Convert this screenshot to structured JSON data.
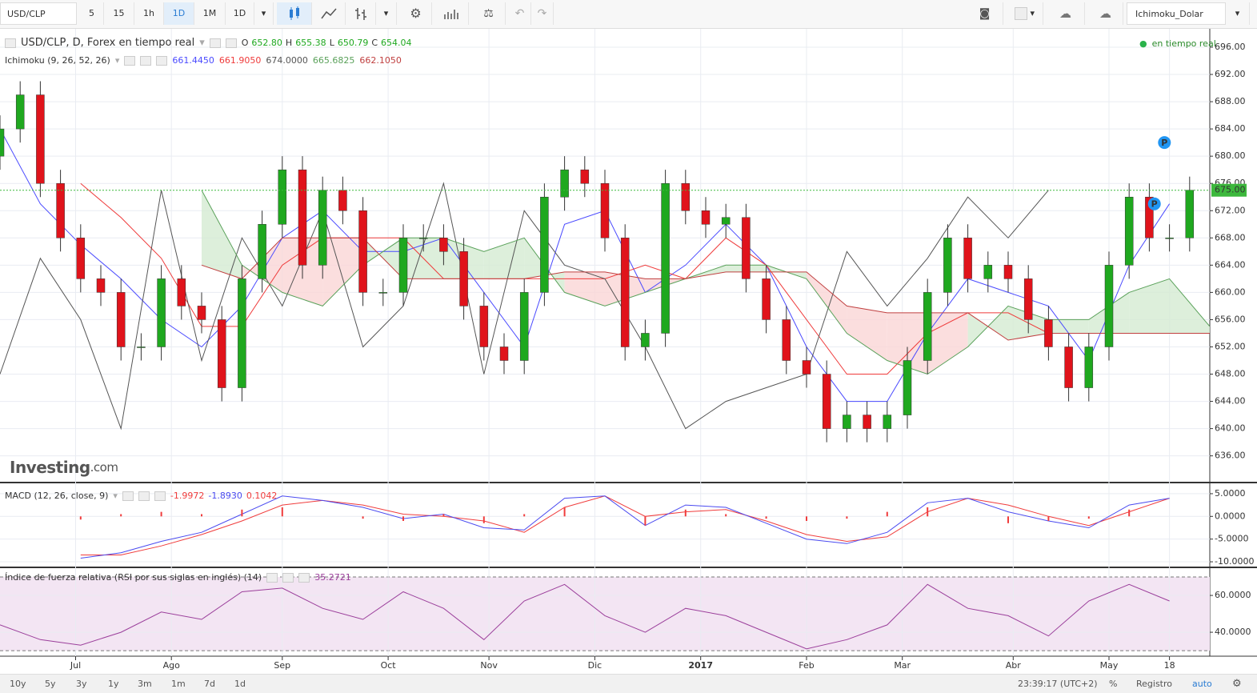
{
  "toolbar": {
    "symbol": "USD/CLP",
    "intervals": [
      "5",
      "15",
      "1h",
      "1D",
      "1M"
    ],
    "chart_type": "1D",
    "template": "Ichimoku_Dolar"
  },
  "chart_data": [
    {
      "type": "candlestick",
      "title": "USD/CLP, D, Forex en tiempo real",
      "status": "en tiempo real",
      "readout": [
        {
          "name": "O",
          "value": "652.80"
        },
        {
          "name": "H",
          "value": "655.38"
        },
        {
          "name": "L",
          "value": "650.79"
        },
        {
          "name": "C",
          "value": "654.04"
        }
      ],
      "watermark": [
        "Investing",
        ".com"
      ],
      "x": [
        0,
        4,
        8,
        12,
        16,
        20,
        24,
        28,
        32,
        36,
        40,
        44,
        48,
        52,
        56,
        60,
        64,
        68,
        72,
        76,
        80,
        84,
        88,
        92,
        96,
        100,
        104,
        108,
        112,
        116,
        120,
        124,
        128,
        132,
        136,
        140,
        144,
        148,
        152,
        156,
        160,
        164,
        168,
        172,
        176,
        180,
        184,
        188,
        192,
        196,
        200,
        204,
        208,
        212,
        216,
        220,
        224,
        228,
        232,
        236
      ],
      "open": [
        680,
        684,
        689,
        676,
        668,
        662,
        660,
        652,
        652,
        662,
        658,
        656,
        646,
        662,
        670,
        678,
        664,
        675,
        672,
        660,
        660,
        668,
        668,
        666,
        658,
        652,
        650,
        660,
        674,
        678,
        676,
        668,
        652,
        654,
        676,
        672,
        670,
        671,
        662,
        656,
        650,
        648,
        640,
        642,
        640,
        642,
        650,
        660,
        668,
        662,
        664,
        662,
        656,
        652,
        646,
        652,
        664,
        674,
        668,
        668
      ],
      "high": [
        686,
        691,
        691,
        678,
        670,
        664,
        662,
        654,
        664,
        664,
        660,
        658,
        664,
        672,
        680,
        680,
        677,
        677,
        674,
        662,
        670,
        670,
        670,
        668,
        660,
        654,
        662,
        676,
        680,
        680,
        678,
        670,
        656,
        678,
        678,
        674,
        673,
        673,
        664,
        658,
        652,
        650,
        644,
        644,
        644,
        652,
        662,
        670,
        670,
        666,
        666,
        664,
        658,
        654,
        654,
        666,
        676,
        676,
        670,
        677
      ],
      "low": [
        678,
        682,
        674,
        666,
        660,
        658,
        650,
        650,
        650,
        656,
        654,
        644,
        644,
        660,
        668,
        662,
        662,
        670,
        658,
        658,
        658,
        666,
        664,
        656,
        650,
        648,
        648,
        658,
        672,
        674,
        666,
        650,
        650,
        652,
        670,
        668,
        668,
        660,
        654,
        648,
        646,
        638,
        638,
        638,
        638,
        640,
        648,
        658,
        660,
        660,
        660,
        654,
        650,
        644,
        644,
        650,
        662,
        666,
        666,
        666
      ],
      "close": [
        684,
        689,
        676,
        668,
        662,
        660,
        652,
        652,
        662,
        658,
        656,
        646,
        662,
        670,
        678,
        664,
        675,
        672,
        660,
        660,
        668,
        668,
        666,
        658,
        652,
        650,
        660,
        674,
        678,
        676,
        668,
        652,
        654,
        676,
        672,
        670,
        671,
        662,
        656,
        650,
        648,
        640,
        642,
        640,
        642,
        650,
        660,
        668,
        662,
        664,
        662,
        656,
        652,
        646,
        652,
        664,
        674,
        668,
        668,
        675
      ],
      "up_color": "#1fa81f",
      "down_color": "#e0131b",
      "indicator": "Ichimoku (9, 26, 52, 26)",
      "overlays": [
        {
          "color": "#4a4aff",
          "readout": "661.4450",
          "x": [
            0,
            8,
            16,
            24,
            32,
            40,
            48,
            56,
            64,
            72,
            80,
            88,
            96,
            104,
            112,
            120,
            128,
            136,
            144,
            152,
            160,
            168,
            176,
            184,
            192,
            200,
            208,
            216,
            224,
            232
          ],
          "values": [
            684,
            673,
            667,
            662,
            656,
            652,
            658,
            668,
            672,
            666,
            666,
            668,
            660,
            652,
            670,
            672,
            660,
            664,
            670,
            664,
            652,
            644,
            644,
            654,
            662,
            660,
            658,
            650,
            664,
            673
          ]
        },
        {
          "color": "#ef3b3b",
          "readout": "661.9050",
          "x": [
            0,
            8,
            16,
            24,
            32,
            40,
            48,
            56,
            64,
            72,
            80,
            88,
            96,
            104,
            112,
            120,
            128,
            136,
            144,
            152,
            160,
            168,
            176,
            184,
            192,
            200,
            208,
            216,
            224,
            232
          ],
          "values": [
            null,
            null,
            676,
            671,
            665,
            655,
            655,
            664,
            668,
            668,
            668,
            662,
            662,
            662,
            662,
            662,
            664,
            662,
            668,
            664,
            656,
            648,
            648,
            654,
            657,
            657,
            654,
            654,
            654,
            654
          ]
        },
        {
          "color": "#555555",
          "readout": "674.0000",
          "x": [
            0,
            8,
            16,
            24,
            32,
            40,
            48,
            56,
            64,
            72,
            80,
            88,
            96,
            104,
            112,
            120,
            128,
            136,
            144,
            152,
            160,
            168,
            176,
            184,
            192,
            200,
            208
          ],
          "values": [
            648,
            665,
            656,
            640,
            675,
            650,
            668,
            658,
            672,
            652,
            658,
            676,
            648,
            672,
            664,
            662,
            652,
            640,
            644,
            646,
            648,
            666,
            658,
            665,
            674,
            668,
            675
          ]
        },
        {
          "color": "#5aa15a",
          "readout": "665.6825",
          "x": [
            40,
            48,
            56,
            64,
            72,
            80,
            88,
            96,
            104,
            112,
            120,
            128,
            136,
            144,
            152,
            160,
            168,
            176,
            184,
            192,
            200,
            208,
            216,
            224,
            232,
            240
          ],
          "values": [
            675,
            664,
            660,
            658,
            664,
            668,
            668,
            666,
            668,
            660,
            658,
            660,
            662,
            664,
            664,
            662,
            654,
            650,
            648,
            652,
            658,
            656,
            656,
            660,
            662,
            655
          ]
        },
        {
          "color": "#c04040",
          "readout": "662.1050",
          "x": [
            40,
            48,
            56,
            64,
            72,
            80,
            88,
            96,
            104,
            112,
            120,
            128,
            136,
            144,
            152,
            160,
            168,
            176,
            184,
            192,
            200,
            208,
            216,
            224,
            232,
            240
          ],
          "values": [
            664,
            662,
            668,
            668,
            668,
            662,
            662,
            662,
            662,
            663,
            663,
            662,
            662,
            663,
            663,
            663,
            658,
            657,
            657,
            657,
            653,
            654,
            654,
            654,
            654,
            654
          ]
        }
      ],
      "cloud": {
        "up_color": "#d5ebd2",
        "down_color": "#fad6d6"
      },
      "last_price": {
        "value": 675,
        "label": "675.00",
        "color": "#3cb83c"
      },
      "markers": [
        {
          "x": 231,
          "value": 682,
          "label": "P"
        },
        {
          "x": 229,
          "value": 673,
          "label": "P"
        }
      ],
      "xlim": [
        0,
        240
      ],
      "xticks": [
        {
          "value": 15,
          "label": "Jul"
        },
        {
          "value": 34,
          "label": "Ago"
        },
        {
          "value": 56,
          "label": "Sep"
        },
        {
          "value": 77,
          "label": "Oct"
        },
        {
          "value": 97,
          "label": "Nov"
        },
        {
          "value": 118,
          "label": "Dic"
        },
        {
          "value": 139,
          "label": "2017"
        },
        {
          "value": 160,
          "label": "Feb"
        },
        {
          "value": 179,
          "label": "Mar"
        },
        {
          "value": 201,
          "label": "Abr"
        },
        {
          "value": 220,
          "label": "May"
        },
        {
          "value": 232,
          "label": "18"
        }
      ],
      "ylim": [
        632.2,
        698.7
      ],
      "yticks": [
        {
          "value": 636,
          "label": "636.00"
        },
        {
          "value": 640,
          "label": "640.00"
        },
        {
          "value": 644,
          "label": "644.00"
        },
        {
          "value": 648,
          "label": "648.00"
        },
        {
          "value": 652,
          "label": "652.00"
        },
        {
          "value": 656,
          "label": "656.00"
        },
        {
          "value": 660,
          "label": "660.00"
        },
        {
          "value": 664,
          "label": "664.00"
        },
        {
          "value": 668,
          "label": "668.00"
        },
        {
          "value": 672,
          "label": "672.00"
        },
        {
          "value": 676,
          "label": "676.00"
        },
        {
          "value": 680,
          "label": "680.00"
        },
        {
          "value": 684,
          "label": "684.00"
        },
        {
          "value": 688,
          "label": "688.00"
        },
        {
          "value": 692,
          "label": "692.00"
        },
        {
          "value": 696,
          "label": "696.00"
        }
      ]
    },
    {
      "type": "macd",
      "title": "MACD (12, 26, close, 9)",
      "x": [
        0,
        8,
        16,
        24,
        32,
        40,
        48,
        56,
        64,
        72,
        80,
        88,
        96,
        104,
        112,
        120,
        128,
        136,
        144,
        152,
        160,
        168,
        176,
        184,
        192,
        200,
        208,
        216,
        224,
        232
      ],
      "series": [
        {
          "color": "#f03c3c",
          "readout": "-1.9972",
          "values": [
            null,
            null,
            -8.5,
            -8.5,
            -6.5,
            -4.0,
            -1.0,
            2.5,
            3.5,
            2.5,
            0.5,
            0.0,
            -1.0,
            -3.5,
            2.0,
            4.5,
            0.0,
            1.0,
            1.5,
            -1.0,
            -4.0,
            -5.5,
            -4.5,
            1.0,
            4.0,
            2.5,
            0.0,
            -2.0,
            1.0,
            4.0
          ]
        },
        {
          "color": "#4a4af0",
          "readout": "-1.8930",
          "values": [
            null,
            null,
            -9.2,
            -8.0,
            -5.5,
            -3.5,
            0.5,
            4.5,
            3.5,
            2.0,
            -0.5,
            0.5,
            -2.5,
            -3.0,
            4.0,
            4.5,
            -2.0,
            2.5,
            2.0,
            -1.5,
            -5.0,
            -6.0,
            -3.5,
            3.0,
            4.0,
            1.0,
            -1.0,
            -2.5,
            2.5,
            4.0
          ]
        },
        {
          "color": "#f03c3c",
          "readout": "0.1042",
          "style": "histogram",
          "values": [
            null,
            null,
            -0.7,
            0.5,
            1.0,
            0.5,
            1.5,
            2.0,
            0,
            -0.5,
            -1.0,
            0.5,
            -1.5,
            0.5,
            2.0,
            0,
            -2.0,
            1.5,
            0.5,
            -0.5,
            -1.0,
            -0.5,
            1.0,
            2.0,
            0,
            -1.5,
            -1.0,
            -0.5,
            1.5,
            0
          ]
        }
      ],
      "ylim": [
        -11.05,
        7.28
      ],
      "yticks": [
        {
          "value": 5,
          "label": "5.0000"
        },
        {
          "value": 0,
          "label": "0.0000"
        },
        {
          "value": -5,
          "label": "-5.0000"
        },
        {
          "value": -10,
          "label": "-10.0000"
        }
      ]
    },
    {
      "type": "rsi",
      "title": "Índice de fuerza relativa (RSI por sus siglas en inglés) (14)",
      "readout": "35.2721",
      "color": "#9b3f9b",
      "x": [
        0,
        8,
        16,
        24,
        32,
        40,
        48,
        56,
        64,
        72,
        80,
        88,
        96,
        104,
        112,
        120,
        128,
        136,
        144,
        152,
        160,
        168,
        176,
        184,
        192,
        200,
        208,
        216,
        224,
        232
      ],
      "values": [
        44,
        36,
        33,
        40,
        51,
        47,
        62,
        64,
        53,
        47,
        62,
        53,
        36,
        57,
        66,
        49,
        40,
        53,
        49,
        40,
        31,
        36,
        44,
        66,
        53,
        49,
        38,
        57,
        66,
        57
      ],
      "bands": [
        30,
        70
      ],
      "band_color": "#f3e5f3",
      "ylim": [
        27,
        74.8
      ],
      "yticks": [
        {
          "value": 60,
          "label": "60.0000"
        },
        {
          "value": 40,
          "label": "40.0000"
        }
      ]
    }
  ],
  "footer": {
    "ranges": [
      "10y",
      "5y",
      "3y",
      "1y",
      "3m",
      "1m",
      "7d",
      "1d"
    ],
    "clock": "23:39:17 (UTC+2)",
    "percent": "%",
    "log": "Registro",
    "auto": "auto"
  }
}
